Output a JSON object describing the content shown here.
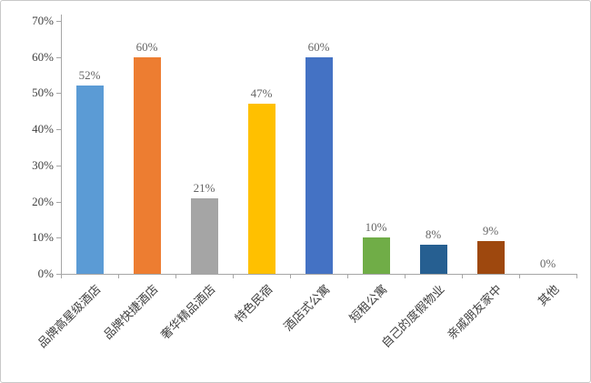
{
  "chart_data": {
    "type": "bar",
    "title": "",
    "categories": [
      "品牌高星级酒店",
      "品牌快捷酒店",
      "奢华精品酒店",
      "特色民宿",
      "酒店式公寓",
      "短租公寓",
      "自己的度假物业",
      "亲戚朋友家中",
      "其他"
    ],
    "values": [
      52,
      60,
      21,
      47,
      60,
      10,
      8,
      9,
      0
    ],
    "value_labels": [
      "52%",
      "60%",
      "21%",
      "47%",
      "60%",
      "10%",
      "8%",
      "9%",
      "0%"
    ],
    "bar_colors": [
      "#5B9BD5",
      "#ED7D31",
      "#A5A5A5",
      "#FFC000",
      "#4472C4",
      "#70AD47",
      "#265F91",
      "#9E480E",
      "#636363"
    ],
    "xlabel": "",
    "ylabel": "",
    "ylim": [
      0,
      70
    ],
    "ytick_step": 10,
    "ytick_labels": [
      "0%",
      "10%",
      "20%",
      "30%",
      "40%",
      "50%",
      "60%",
      "70%"
    ],
    "grid": false,
    "legend": "none",
    "bar_label_position": "above",
    "x_labels_rotation_deg": 45
  },
  "colors": {
    "axis": "#A6A6A6",
    "tick_label": "#404040",
    "value_label": "#666666",
    "background": "#FFFFFF",
    "frame_border": "#C9C9C9"
  }
}
